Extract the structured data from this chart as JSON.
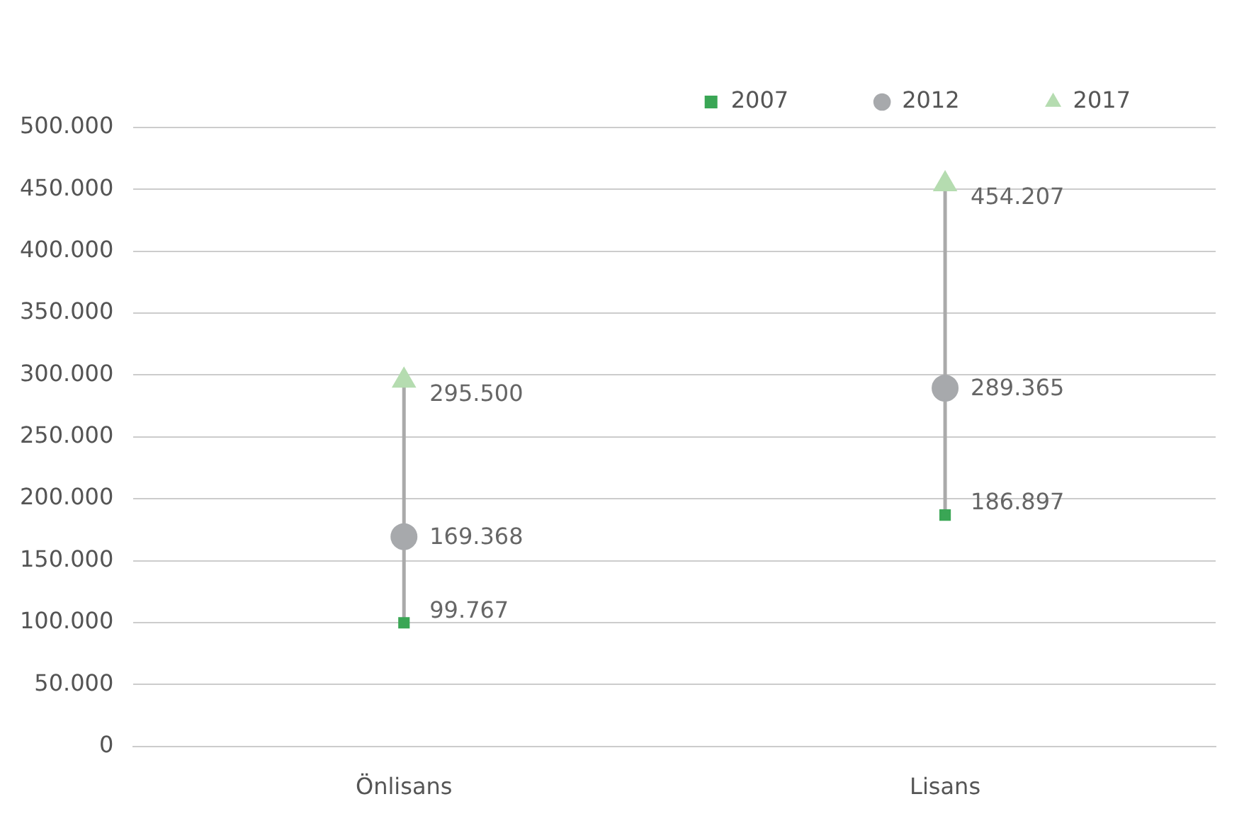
{
  "chart_data": {
    "type": "scatter",
    "categories": [
      "Önlisans",
      "Lisans"
    ],
    "series": [
      {
        "name": "2007",
        "color": "#3aa655",
        "marker": "square",
        "values": [
          99767,
          186897
        ],
        "value_labels": [
          "99.767",
          "186.897"
        ]
      },
      {
        "name": "2012",
        "color": "#a7a9ac",
        "marker": "circle",
        "values": [
          169368,
          289365
        ],
        "value_labels": [
          "169.368",
          "289.365"
        ]
      },
      {
        "name": "2017",
        "color": "#b5dcb0",
        "marker": "triangle",
        "values": [
          295500,
          454207
        ],
        "value_labels": [
          "295.500",
          "454.207"
        ]
      }
    ],
    "ylim": [
      0,
      500000
    ],
    "yticks": [
      0,
      {
        "value": 50000,
        "label": "50.000"
      },
      {
        "value": 100000,
        "label": "100.000"
      },
      {
        "value": 150000,
        "label": "150.000"
      },
      {
        "value": 200000,
        "label": "200.000"
      },
      {
        "value": 250000,
        "label": "250.000"
      },
      {
        "value": 300000,
        "label": "300.000"
      },
      {
        "value": 350000,
        "label": "350.000"
      },
      {
        "value": 400000,
        "label": "400.000"
      },
      {
        "value": 450000,
        "label": "450.000"
      },
      {
        "value": 500000,
        "label": "500.000"
      }
    ],
    "grid": "y",
    "legend": "top right"
  }
}
